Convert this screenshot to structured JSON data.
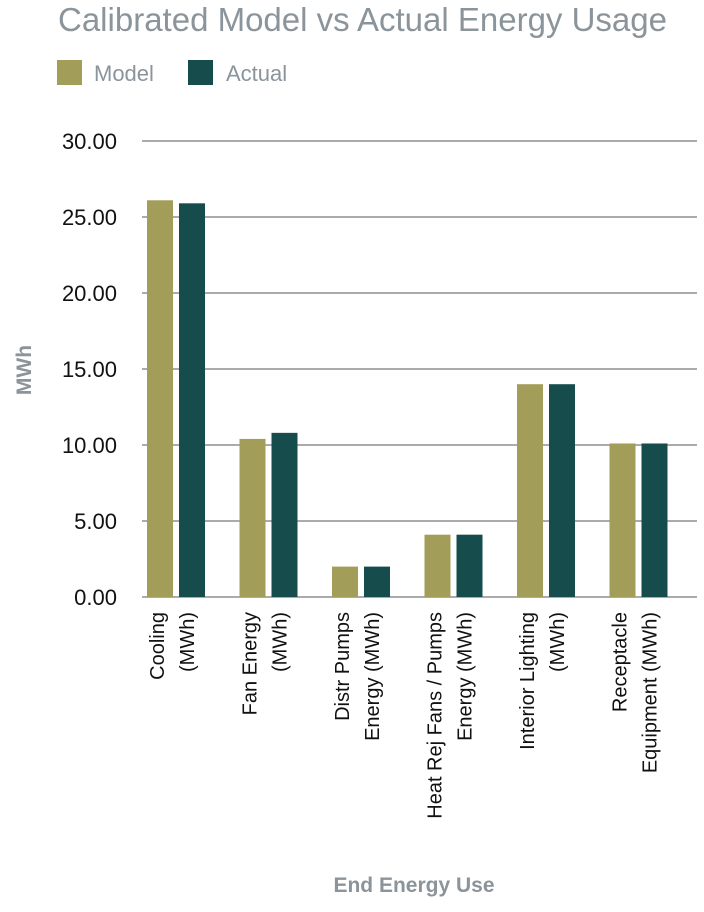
{
  "chart_data": {
    "type": "bar",
    "title": "Calibrated Model vs Actual Energy Usage",
    "xlabel": "End Energy Use",
    "ylabel": "MWh",
    "ylim": [
      0,
      30
    ],
    "yticks": [
      "0.00",
      "5.00",
      "10.00",
      "15.00",
      "20.00",
      "25.00",
      "30.00"
    ],
    "grid": true,
    "legend_position": "top-left",
    "categories": [
      [
        "Cooling",
        "(MWh)"
      ],
      [
        "Fan Energy",
        "(MWh)"
      ],
      [
        "Distr Pumps",
        "Energy (MWh)"
      ],
      [
        "Heat Rej Fans / Pumps",
        "Energy (MWh)"
      ],
      [
        "Interior Lighting",
        "(MWh)"
      ],
      [
        "Receptacle",
        "Equipment (MWh)"
      ]
    ],
    "series": [
      {
        "name": "Model",
        "color": "#a39d5a",
        "values": [
          26.1,
          10.4,
          2.0,
          4.1,
          14.0,
          10.1
        ]
      },
      {
        "name": "Actual",
        "color": "#174c4c",
        "values": [
          25.9,
          10.8,
          2.0,
          4.1,
          14.0,
          10.1
        ]
      }
    ]
  }
}
